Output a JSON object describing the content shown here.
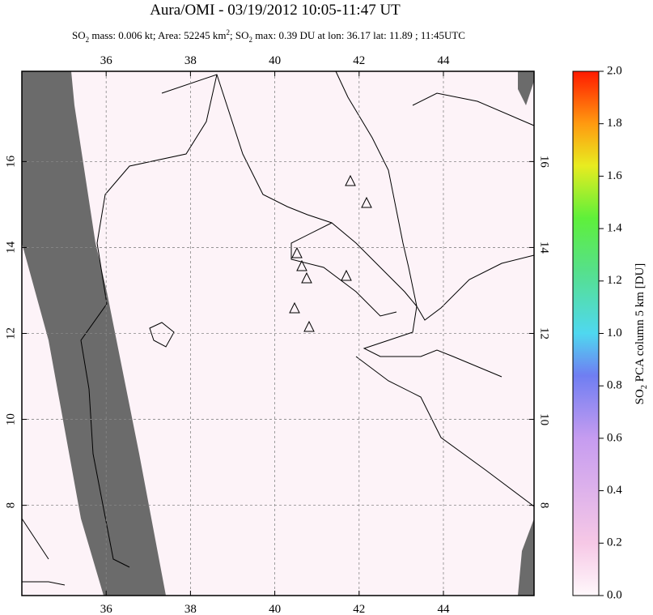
{
  "header": {
    "title": "Aura/OMI - 03/19/2012 10:05-11:47 UT",
    "subtitle": [
      "SO",
      "2",
      " mass: 0.006 kt; Area: 52245 km",
      "2",
      "; SO",
      "2",
      " max: 0.39 DU at lon: 36.17 lat: 11.89 ; 11:45UTC"
    ]
  },
  "map": {
    "xlim": [
      34,
      46.15
    ],
    "ylim": [
      5.9,
      18.1
    ],
    "xticks": [
      36,
      38,
      40,
      42,
      44
    ],
    "yticks": [
      8,
      10,
      12,
      14,
      16
    ],
    "grid": true
  },
  "colorbar": {
    "label": [
      "SO",
      "2",
      " PCA column 5 km [DU]"
    ],
    "clim": [
      0,
      2
    ],
    "ticks": [
      {
        "value": 0,
        "label": "0.0"
      },
      {
        "value": 0.2,
        "label": "0.2"
      },
      {
        "value": 0.4,
        "label": "0.4"
      },
      {
        "value": 0.6,
        "label": "0.6"
      },
      {
        "value": 0.8,
        "label": "0.8"
      },
      {
        "value": 1,
        "label": "1.0"
      },
      {
        "value": 1.2,
        "label": "1.2"
      },
      {
        "value": 1.4,
        "label": "1.4"
      },
      {
        "value": 1.6,
        "label": "1.6"
      },
      {
        "value": 1.8,
        "label": "1.8"
      },
      {
        "value": 2,
        "label": "2.0"
      }
    ]
  }
}
